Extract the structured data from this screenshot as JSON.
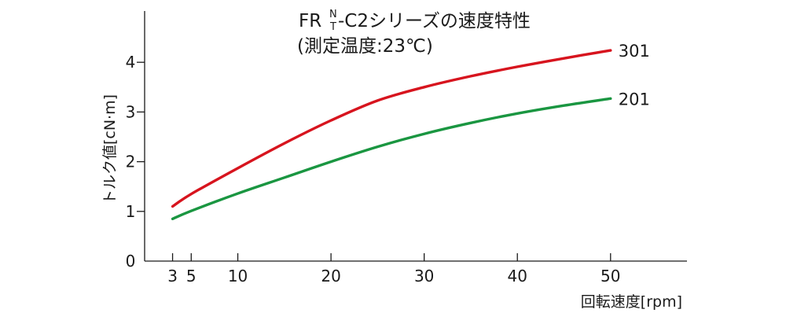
{
  "chart_data": {
    "type": "line",
    "title": {
      "prefix": "FR",
      "stack_top": "N",
      "stack_bottom": "T",
      "suffix": "-C2シリーズの速度特性",
      "subtitle": "(測定温度:23℃)"
    },
    "xlabel": "回転速度[rpm]",
    "ylabel": "トルク値[cN·m]",
    "xlim": [
      0,
      58.2
    ],
    "ylim": [
      0,
      5
    ],
    "x_ticks": [
      3,
      5,
      10,
      20,
      30,
      40,
      50
    ],
    "x_tick_labels": [
      "3",
      "5",
      "10",
      "20",
      "30",
      "40",
      "50"
    ],
    "y_ticks": [
      0,
      1,
      2,
      3,
      4
    ],
    "y_tick_labels": [
      "0",
      "1",
      "2",
      "3",
      "4"
    ],
    "grid": false,
    "series": [
      {
        "name": "301",
        "color": "#d7141e",
        "x": [
          3,
          5,
          10,
          15,
          20,
          25,
          30,
          35,
          40,
          45,
          50
        ],
        "y": [
          1.1,
          1.35,
          1.87,
          2.37,
          2.83,
          3.23,
          3.5,
          3.72,
          3.91,
          4.08,
          4.24
        ]
      },
      {
        "name": "201",
        "color": "#1a9641",
        "x": [
          3,
          5,
          10,
          15,
          20,
          25,
          30,
          35,
          40,
          45,
          50
        ],
        "y": [
          0.85,
          1.01,
          1.36,
          1.68,
          2.0,
          2.3,
          2.56,
          2.78,
          2.97,
          3.13,
          3.27
        ]
      }
    ]
  }
}
